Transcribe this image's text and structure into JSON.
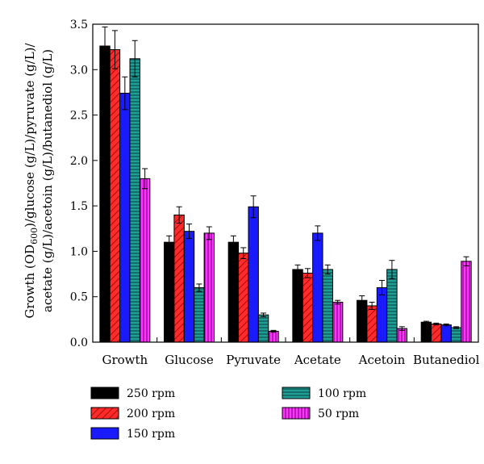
{
  "chart_data": {
    "type": "bar",
    "title": "",
    "xlabel": "",
    "ylabel_line1_pre": "Growth (OD",
    "ylabel_line1_sub": "600",
    "ylabel_line1_post": ")/glucose (g/L)/pyruvate (g/L)/",
    "ylabel_line2": "acetate (g/L)/acetoin (g/L)/butanediol (g/L)",
    "ylim": [
      0,
      3.5
    ],
    "yticks": [
      "0.0",
      "0.5",
      "1.0",
      "1.5",
      "2.0",
      "2.5",
      "3.0",
      "3.5"
    ],
    "categories": [
      "Growth",
      "Glucose",
      "Pyruvate",
      "Acetate",
      "Acetoin",
      "Butanediol"
    ],
    "series": [
      {
        "name": "250 rpm",
        "color": "#000000",
        "pattern": "solid",
        "values": [
          3.26,
          1.1,
          1.1,
          0.8,
          0.46,
          0.22
        ],
        "errors": [
          0.21,
          0.07,
          0.07,
          0.05,
          0.05,
          0.01
        ]
      },
      {
        "name": "200 rpm",
        "color": "#ff2a2a",
        "pattern": "diagonal",
        "values": [
          3.22,
          1.4,
          0.98,
          0.76,
          0.4,
          0.2
        ],
        "errors": [
          0.21,
          0.09,
          0.06,
          0.05,
          0.04,
          0.01
        ]
      },
      {
        "name": "150 rpm",
        "color": "#1a1aff",
        "pattern": "solid",
        "values": [
          2.74,
          1.22,
          1.49,
          1.2,
          0.6,
          0.19
        ],
        "errors": [
          0.18,
          0.08,
          0.12,
          0.08,
          0.08,
          0.01
        ]
      },
      {
        "name": "100 rpm",
        "color": "#1f9e96",
        "pattern": "horizontal",
        "values": [
          3.12,
          0.6,
          0.3,
          0.8,
          0.8,
          0.16
        ],
        "errors": [
          0.2,
          0.04,
          0.02,
          0.05,
          0.1,
          0.01
        ]
      },
      {
        "name": "50 rpm",
        "color": "#ff33ff",
        "pattern": "vertical",
        "values": [
          1.8,
          1.2,
          0.12,
          0.44,
          0.15,
          0.89
        ],
        "errors": [
          0.11,
          0.07,
          0.01,
          0.02,
          0.02,
          0.05
        ]
      }
    ],
    "legend": {
      "position": "bottom"
    }
  }
}
